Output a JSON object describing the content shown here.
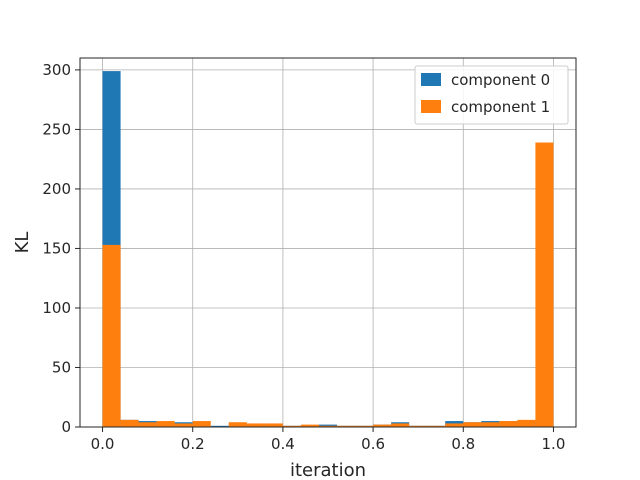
{
  "chart_data": {
    "type": "bar",
    "title": "",
    "xlabel": "iteration",
    "ylabel": "KL",
    "xlim": [
      -0.05,
      1.05
    ],
    "ylim": [
      0,
      310
    ],
    "xticks": [
      0.0,
      0.2,
      0.4,
      0.6,
      0.8,
      1.0
    ],
    "xtick_labels": [
      "0.0",
      "0.2",
      "0.4",
      "0.6",
      "0.8",
      "1.0"
    ],
    "yticks": [
      0,
      50,
      100,
      150,
      200,
      250,
      300
    ],
    "ytick_labels": [
      "0",
      "50",
      "100",
      "150",
      "200",
      "250",
      "300"
    ],
    "grid": true,
    "legend_position": "top-right",
    "bin_edges": [
      0.0,
      0.04,
      0.08,
      0.12,
      0.16,
      0.2,
      0.24,
      0.28,
      0.32,
      0.36,
      0.4,
      0.44,
      0.48,
      0.52,
      0.56,
      0.6,
      0.64,
      0.68,
      0.72,
      0.76,
      0.8,
      0.84,
      0.88,
      0.92,
      0.96,
      1.0
    ],
    "series": [
      {
        "name": "component 0",
        "color": "#1f77b4",
        "values": [
          299,
          6,
          5,
          4,
          4,
          1,
          1,
          3,
          2,
          1,
          1,
          1,
          2,
          1,
          1,
          2,
          4,
          1,
          1,
          5,
          4,
          5,
          5,
          5,
          3
        ]
      },
      {
        "name": "component 1",
        "color": "#ff7f0e",
        "values": [
          153,
          6,
          4,
          5,
          3,
          5,
          0,
          4,
          3,
          3,
          1,
          2,
          1,
          1,
          1,
          2,
          3,
          1,
          1,
          3,
          4,
          4,
          5,
          6,
          239
        ]
      }
    ]
  }
}
